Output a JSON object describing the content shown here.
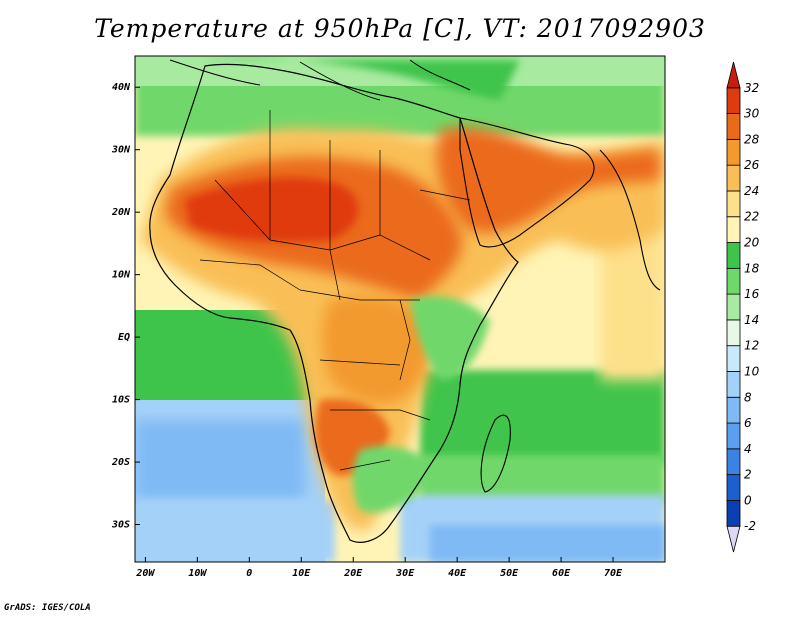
{
  "title": "Temperature at 950hPa [C], VT: 2017092903",
  "credit": "GrADS: IGES/COLA",
  "map": {
    "x_ticks": [
      "20W",
      "10W",
      "0",
      "10E",
      "20E",
      "30E",
      "40E",
      "50E",
      "60E",
      "70E"
    ],
    "y_ticks": [
      "40N",
      "30N",
      "20N",
      "10N",
      "EQ",
      "10S",
      "20S",
      "30S"
    ],
    "lon_range": [
      -22,
      80
    ],
    "lat_range": [
      -36,
      45
    ]
  },
  "colorbar": {
    "labels": [
      "-2",
      "0",
      "2",
      "4",
      "6",
      "8",
      "10",
      "12",
      "14",
      "16",
      "18",
      "20",
      "22",
      "24",
      "26",
      "28",
      "30",
      "32"
    ],
    "colors": [
      "#1b1c8a",
      "#0b3fb5",
      "#1e5fd0",
      "#3c82e3",
      "#5aa0ef",
      "#7fbaf5",
      "#a4d1f8",
      "#c9e8fa",
      "#e7f8e6",
      "#a8eba0",
      "#6fd86a",
      "#3fc44b",
      "#fff4b5",
      "#fde08a",
      "#f9bf56",
      "#f39a2d",
      "#eb6a1a",
      "#e03a10",
      "#c71d0b"
    ]
  }
}
